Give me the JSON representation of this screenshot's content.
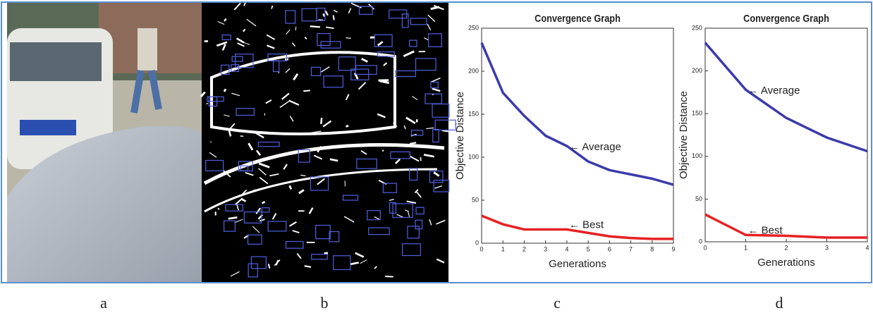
{
  "panels": {
    "labels": [
      "a",
      "b",
      "c",
      "d"
    ]
  },
  "chart_data": [
    {
      "type": "line",
      "title": "Convergence Graph",
      "x_label": "Generations",
      "y_label": "Objective Distance",
      "x": [
        0,
        1,
        2,
        3,
        4,
        5,
        6,
        7,
        8,
        9
      ],
      "series": [
        {
          "name": "← Average",
          "color": "#3b3bab",
          "values": [
            233,
            175,
            148,
            125,
            113,
            95,
            85,
            80,
            75,
            68
          ]
        },
        {
          "name": "← Best",
          "color": "#e62222",
          "values": [
            32,
            22,
            16,
            16,
            16,
            12,
            8,
            6,
            5,
            5
          ]
        }
      ],
      "xlim": [
        0,
        9
      ],
      "xticks": [
        0,
        1,
        2,
        3,
        4,
        5,
        6,
        7,
        8,
        9
      ],
      "ylim": [
        0,
        250
      ],
      "yticks": [
        0,
        50,
        100,
        150,
        200,
        250
      ]
    },
    {
      "type": "line",
      "title": "Convergence Graph",
      "x_label": "Generations",
      "y_label": "Objective Distance",
      "x": [
        0,
        1,
        2,
        3,
        4
      ],
      "series": [
        {
          "name": "← Average",
          "color": "#3b3bab",
          "values": [
            233,
            178,
            145,
            122,
            106
          ]
        },
        {
          "name": "← Best",
          "color": "#e62222",
          "values": [
            32,
            8,
            7,
            5,
            5
          ]
        }
      ],
      "xlim": [
        0,
        4
      ],
      "xticks": [
        0,
        1,
        2,
        3,
        4
      ],
      "ylim": [
        0,
        250
      ],
      "yticks": [
        0,
        50,
        100,
        150,
        200,
        250
      ]
    }
  ]
}
